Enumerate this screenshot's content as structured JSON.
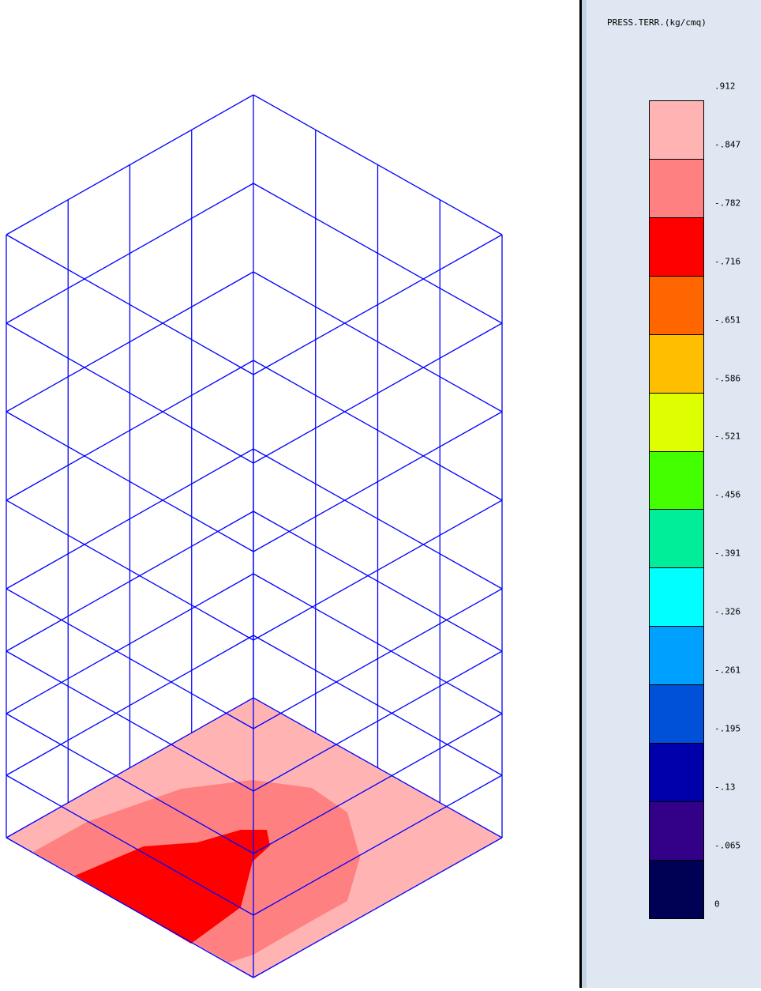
{
  "legend": {
    "title": "PRESS.TERR.(kg/cmq)",
    "labels": [
      ".912",
      "-.847",
      "-.782",
      "-.716",
      "-.651",
      "-.586",
      "-.521",
      "-.456",
      "-.391",
      "-.326",
      "-.261",
      "-.195",
      "-.13",
      "-.065",
      "0"
    ],
    "colors": [
      "#ffb3b3",
      "#ff8080",
      "#ff0000",
      "#ff6600",
      "#ffbf00",
      "#ddff00",
      "#44ff00",
      "#00ee99",
      "#00ffff",
      "#00a0ff",
      "#0050d8",
      "#0000aa",
      "#330088",
      "#000055"
    ]
  },
  "model": {
    "wireframe_color": "#0000ff",
    "pressure_fill_colors": {
      "low": "#ffb3b3",
      "mid": "#ff8080",
      "high": "#ff0000"
    }
  }
}
